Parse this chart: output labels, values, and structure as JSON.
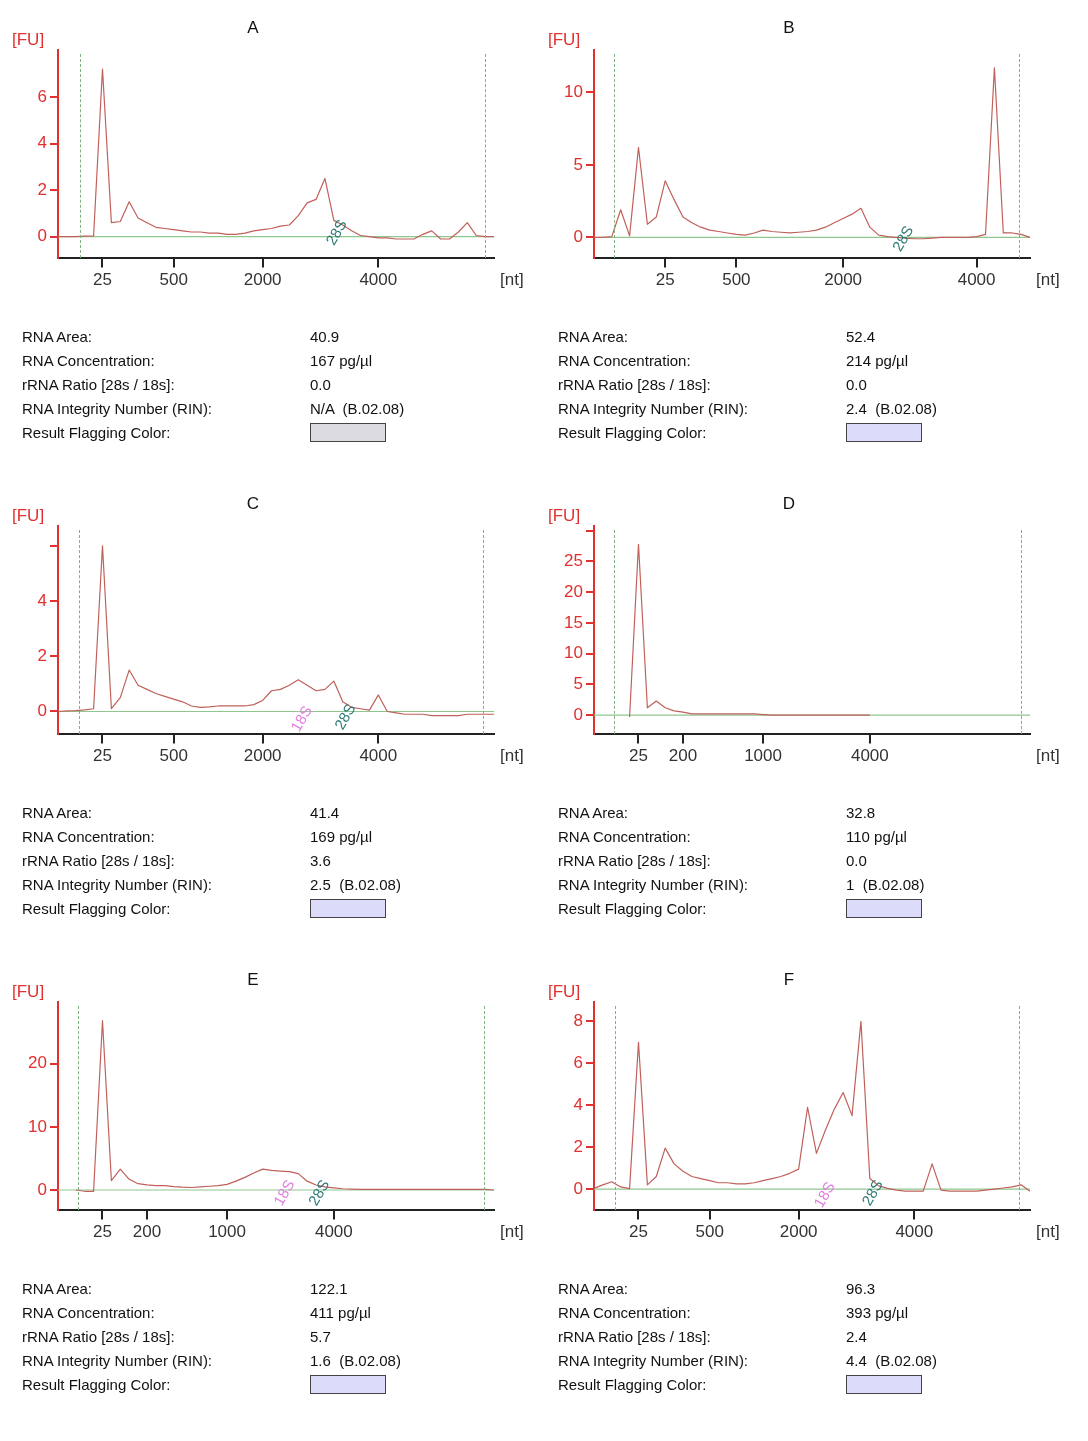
{
  "chart_data": [
    {
      "type": "line",
      "title": "A",
      "xlabel": "[nt]",
      "ylabel": "[FU]",
      "ylim": [
        -0.9,
        8
      ],
      "yticks": [
        0,
        2,
        4,
        6
      ],
      "categories": [
        null,
        null,
        null,
        null,
        null,
        "25",
        null,
        null,
        null,
        null,
        null,
        null,
        null,
        "500",
        null,
        null,
        null,
        null,
        null,
        null,
        null,
        null,
        null,
        "2000",
        null,
        null,
        null,
        null,
        null,
        null,
        null,
        null,
        null,
        null,
        null,
        null,
        "4000",
        null,
        null,
        null,
        null,
        null,
        null,
        null,
        null,
        null,
        null,
        null,
        null,
        null
      ],
      "series": [
        {
          "color": "#c0605a",
          "values": [
            0,
            0,
            0,
            0.02,
            0.03,
            7.2,
            0.6,
            0.65,
            1.5,
            0.8,
            0.6,
            0.4,
            0.35,
            0.3,
            0.25,
            0.2,
            0.2,
            0.15,
            0.15,
            0.1,
            0.1,
            0.15,
            0.25,
            0.3,
            0.35,
            0.45,
            0.5,
            0.9,
            1.45,
            1.6,
            2.5,
            0.7,
            0.5,
            0.25,
            0.05,
            0,
            -0.05,
            -0.05,
            -0.1,
            -0.1,
            -0.1,
            0.1,
            0.25,
            -0.1,
            -0.1,
            0.2,
            0.6,
            0.05,
            0,
            0
          ]
        }
      ],
      "ref_lines": [
        {
          "axis": "y",
          "value": 0,
          "color": "#8fc78f"
        }
      ],
      "annotations": [
        "28S",
        "RNA Area:",
        "40.9",
        "RNA Concentration:",
        "167 pg/µl",
        "rRNA Ratio [28s / 18s]:",
        "0.0",
        "RNA Integrity Number (RIN):",
        "N/A  (B.02.08)",
        "Result Flagging Color:"
      ]
    },
    {
      "type": "line",
      "title": "B",
      "xlabel": "[nt]",
      "ylabel": "[FU]",
      "ylim": [
        -1.4,
        12.9
      ],
      "yticks": [
        0,
        5,
        10
      ],
      "categories": [
        null,
        null,
        null,
        null,
        null,
        null,
        null,
        null,
        "25",
        null,
        null,
        null,
        null,
        null,
        null,
        null,
        "500",
        null,
        null,
        null,
        null,
        null,
        null,
        null,
        null,
        null,
        null,
        null,
        "2000",
        null,
        null,
        null,
        null,
        null,
        null,
        null,
        null,
        null,
        null,
        null,
        null,
        null,
        null,
        "4000",
        null,
        null,
        null,
        null,
        null,
        null
      ],
      "series": [
        {
          "color": "#c0605a",
          "values": [
            0,
            0,
            0.05,
            1.9,
            0.1,
            6.2,
            0.9,
            1.4,
            3.9,
            2.6,
            1.4,
            1.0,
            0.7,
            0.5,
            0.4,
            0.3,
            0.2,
            0.15,
            0.3,
            0.5,
            0.4,
            0.35,
            0.3,
            0.35,
            0.4,
            0.5,
            0.7,
            1.0,
            1.3,
            1.6,
            2.0,
            0.7,
            0.15,
            0.05,
            0,
            -0.05,
            -0.1,
            -0.1,
            -0.05,
            0,
            0,
            0,
            0,
            0.05,
            0.2,
            11.7,
            0.3,
            0.3,
            0.2,
            0
          ]
        }
      ],
      "ref_lines": [
        {
          "axis": "y",
          "value": 0,
          "color": "#8fc78f"
        }
      ],
      "annotations": [
        "28S",
        "RNA Area:",
        "52.4",
        "RNA Concentration:",
        "214 pg/µl",
        "rRNA Ratio [28s / 18s]:",
        "0.0",
        "RNA Integrity Number (RIN):",
        "2.4  (B.02.08)",
        "Result Flagging Color:"
      ]
    },
    {
      "type": "line",
      "title": "C",
      "xlabel": "[nt]",
      "ylabel": "[FU]",
      "ylim": [
        -0.8,
        6.7
      ],
      "yticks": [
        0,
        2,
        4,
        {
          "value": 6,
          "label": null
        }
      ],
      "categories": [
        null,
        null,
        null,
        null,
        null,
        "25",
        null,
        null,
        null,
        null,
        null,
        null,
        null,
        "500",
        null,
        null,
        null,
        null,
        null,
        null,
        null,
        null,
        null,
        "2000",
        null,
        null,
        null,
        null,
        null,
        null,
        null,
        null,
        null,
        null,
        null,
        null,
        "4000",
        null,
        null,
        null,
        null,
        null,
        null,
        null,
        null,
        null,
        null,
        null,
        null,
        null
      ],
      "series": [
        {
          "color": "#c0605a",
          "values": [
            0,
            0.02,
            0.03,
            0.06,
            0.1,
            6.0,
            0.1,
            0.5,
            1.5,
            0.95,
            0.8,
            0.65,
            0.55,
            0.45,
            0.35,
            0.2,
            0.15,
            0.17,
            0.2,
            0.2,
            0.2,
            0.2,
            0.25,
            0.4,
            0.75,
            0.8,
            0.95,
            1.15,
            0.95,
            0.75,
            0.8,
            1.1,
            0.35,
            0.15,
            0.1,
            0.05,
            0.6,
            0,
            -0.05,
            -0.1,
            -0.1,
            -0.1,
            -0.15,
            -0.15,
            -0.15,
            -0.15,
            -0.1,
            -0.1,
            -0.1,
            -0.1
          ]
        }
      ],
      "ref_lines": [
        {
          "axis": "y",
          "value": 0,
          "color": "#8fc78f"
        }
      ],
      "annotations": [
        "18S",
        "28S",
        "RNA Area:",
        "41.4",
        "RNA Concentration:",
        "169 pg/µl",
        "rRNA Ratio [28s / 18s]:",
        "3.6",
        "RNA Integrity Number (RIN):",
        "2.5  (B.02.08)",
        "Result Flagging Color:"
      ]
    },
    {
      "type": "line",
      "title": "D",
      "xlabel": "[nt]",
      "ylabel": "[FU]",
      "ylim": [
        -3,
        30.7
      ],
      "yticks": [
        0,
        5,
        10,
        15,
        20,
        25,
        {
          "value": 30,
          "label": null
        }
      ],
      "categories": [
        null,
        null,
        null,
        null,
        null,
        "25",
        null,
        null,
        null,
        null,
        "200",
        null,
        null,
        null,
        null,
        null,
        null,
        null,
        null,
        "1000",
        null,
        null,
        null,
        null,
        null,
        null,
        null,
        null,
        null,
        null,
        null,
        "4000",
        null,
        null,
        null,
        null,
        null,
        null,
        null,
        null,
        null,
        null,
        null,
        null,
        null,
        null,
        null,
        null,
        null,
        null
      ],
      "series": [
        {
          "color": "#c0605a",
          "values": [
            null,
            null,
            null,
            null,
            -0.3,
            27.8,
            1.2,
            2.3,
            1.2,
            0.7,
            0.5,
            0.2,
            0.2,
            0.2,
            0.2,
            0.2,
            0.2,
            0.2,
            0.2,
            0.1,
            0,
            0,
            0,
            0,
            0,
            0,
            0,
            0,
            0,
            0,
            0,
            0,
            null,
            null,
            null,
            null,
            null,
            null,
            null,
            null,
            null,
            null,
            null,
            null,
            null,
            null,
            null,
            null,
            null,
            null
          ]
        }
      ],
      "ref_lines": [
        {
          "axis": "y",
          "value": 0,
          "color": "#8fc78f"
        }
      ],
      "annotations": [
        "RNA Area:",
        "32.8",
        "RNA Concentration:",
        "110 pg/µl",
        "rRNA Ratio [28s / 18s]:",
        "0.0",
        "RNA Integrity Number (RIN):",
        "1  (B.02.08)",
        "Result Flagging Color:"
      ]
    },
    {
      "type": "line",
      "title": "E",
      "xlabel": "[nt]",
      "ylabel": "[FU]",
      "ylim": [
        -3.1,
        29.7
      ],
      "yticks": [
        0,
        10,
        20
      ],
      "categories": [
        null,
        null,
        null,
        null,
        null,
        "25",
        null,
        null,
        null,
        null,
        "200",
        null,
        null,
        null,
        null,
        null,
        null,
        null,
        null,
        "1000",
        null,
        null,
        null,
        null,
        null,
        null,
        null,
        null,
        null,
        null,
        null,
        "4000",
        null,
        null,
        null,
        null,
        null,
        null,
        null,
        null,
        null,
        null,
        null,
        null,
        null,
        null,
        null,
        null,
        null,
        null
      ],
      "series": [
        {
          "color": "#c0605a",
          "values": [
            null,
            null,
            0,
            -0.2,
            -0.2,
            26.8,
            1.5,
            3.3,
            1.7,
            1.0,
            0.8,
            0.7,
            0.7,
            0.55,
            0.45,
            0.4,
            0.5,
            0.6,
            0.7,
            0.9,
            1.4,
            2.0,
            2.7,
            3.3,
            3.1,
            3.0,
            2.9,
            2.6,
            1.4,
            0.8,
            0.5,
            0.35,
            0.2,
            0.15,
            0.1,
            0.1,
            0.1,
            0.1,
            0.1,
            0.1,
            0.1,
            0.1,
            0.1,
            0.1,
            0.1,
            0.1,
            0.1,
            0.1,
            0.1,
            0
          ]
        }
      ],
      "ref_lines": [
        {
          "axis": "y",
          "value": 0,
          "color": "#8fc78f"
        }
      ],
      "annotations": [
        "18S",
        "28S",
        "RNA Area:",
        "122.1",
        "RNA Concentration:",
        "411 pg/µl",
        "rRNA Ratio [28s / 18s]:",
        "5.7",
        "RNA Integrity Number (RIN):",
        "1.6  (B.02.08)",
        "Result Flagging Color:"
      ]
    },
    {
      "type": "line",
      "title": "F",
      "xlabel": "[nt]",
      "ylabel": "[FU]",
      "ylim": [
        -0.98,
        8.9
      ],
      "yticks": [
        0,
        2,
        4,
        6,
        8
      ],
      "categories": [
        null,
        null,
        null,
        null,
        null,
        "25",
        null,
        null,
        null,
        null,
        null,
        null,
        null,
        "500",
        null,
        null,
        null,
        null,
        null,
        null,
        null,
        null,
        null,
        "2000",
        null,
        null,
        null,
        null,
        null,
        null,
        null,
        null,
        null,
        null,
        null,
        null,
        "4000",
        null,
        null,
        null,
        null,
        null,
        null,
        null,
        null,
        null,
        null,
        null,
        null,
        null
      ],
      "series": [
        {
          "color": "#c0605a",
          "values": [
            0.03,
            0.2,
            0.35,
            0.1,
            0.02,
            7.0,
            0.2,
            0.6,
            1.95,
            1.2,
            0.85,
            0.6,
            0.5,
            0.4,
            0.3,
            0.3,
            0.25,
            0.25,
            0.3,
            0.4,
            0.5,
            0.6,
            0.75,
            0.95,
            3.9,
            1.7,
            2.8,
            3.8,
            4.6,
            3.5,
            8.0,
            0.5,
            0.15,
            0.03,
            -0.05,
            -0.1,
            -0.1,
            -0.1,
            1.2,
            -0.05,
            -0.1,
            -0.1,
            -0.1,
            -0.1,
            -0.05,
            0,
            0.05,
            0.1,
            0.2,
            -0.1
          ]
        }
      ],
      "ref_lines": [
        {
          "axis": "y",
          "value": 0,
          "color": "#8fc78f"
        }
      ],
      "annotations": [
        "18S",
        "28S",
        "RNA Area:",
        "96.3",
        "RNA Concentration:",
        "393 pg/µl",
        "rRNA Ratio [28s / 18s]:",
        "2.4",
        "RNA Integrity Number (RIN):",
        "4.4  (B.02.08)",
        "Result Flagging Color:"
      ]
    }
  ]
}
